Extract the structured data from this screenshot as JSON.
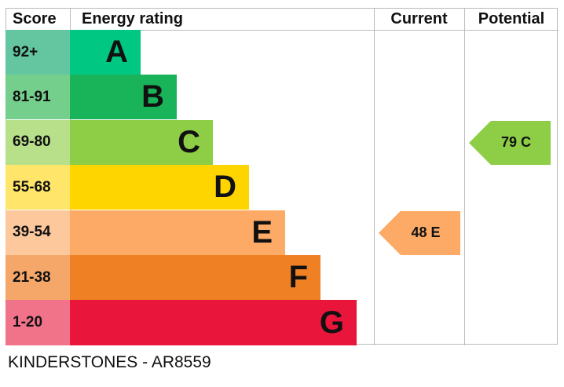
{
  "chart_data": {
    "type": "bar",
    "headers": {
      "score": "Score",
      "rating": "Energy rating",
      "current": "Current",
      "potential": "Potential"
    },
    "bands": [
      {
        "score": "92+",
        "letter": "A",
        "color": "#00c781",
        "score_color": "#63c6a0"
      },
      {
        "score": "81-91",
        "letter": "B",
        "color": "#19b459",
        "score_color": "#74cf8c"
      },
      {
        "score": "69-80",
        "letter": "C",
        "color": "#8dce46",
        "score_color": "#b8e08a"
      },
      {
        "score": "55-68",
        "letter": "D",
        "color": "#ffd500",
        "score_color": "#ffe56a"
      },
      {
        "score": "39-54",
        "letter": "E",
        "color": "#fcaa65",
        "score_color": "#fdc89c"
      },
      {
        "score": "21-38",
        "letter": "F",
        "color": "#ef8023",
        "score_color": "#f4a768"
      },
      {
        "score": "1-20",
        "letter": "G",
        "color": "#e9153b",
        "score_color": "#f0738a"
      }
    ],
    "current": {
      "value": 48,
      "letter": "E",
      "label": "48  E",
      "color": "#fcaa65"
    },
    "potential": {
      "value": 79,
      "letter": "C",
      "label": "79  C",
      "color": "#8dce46"
    }
  },
  "footer": "KINDERSTONES - AR8559"
}
